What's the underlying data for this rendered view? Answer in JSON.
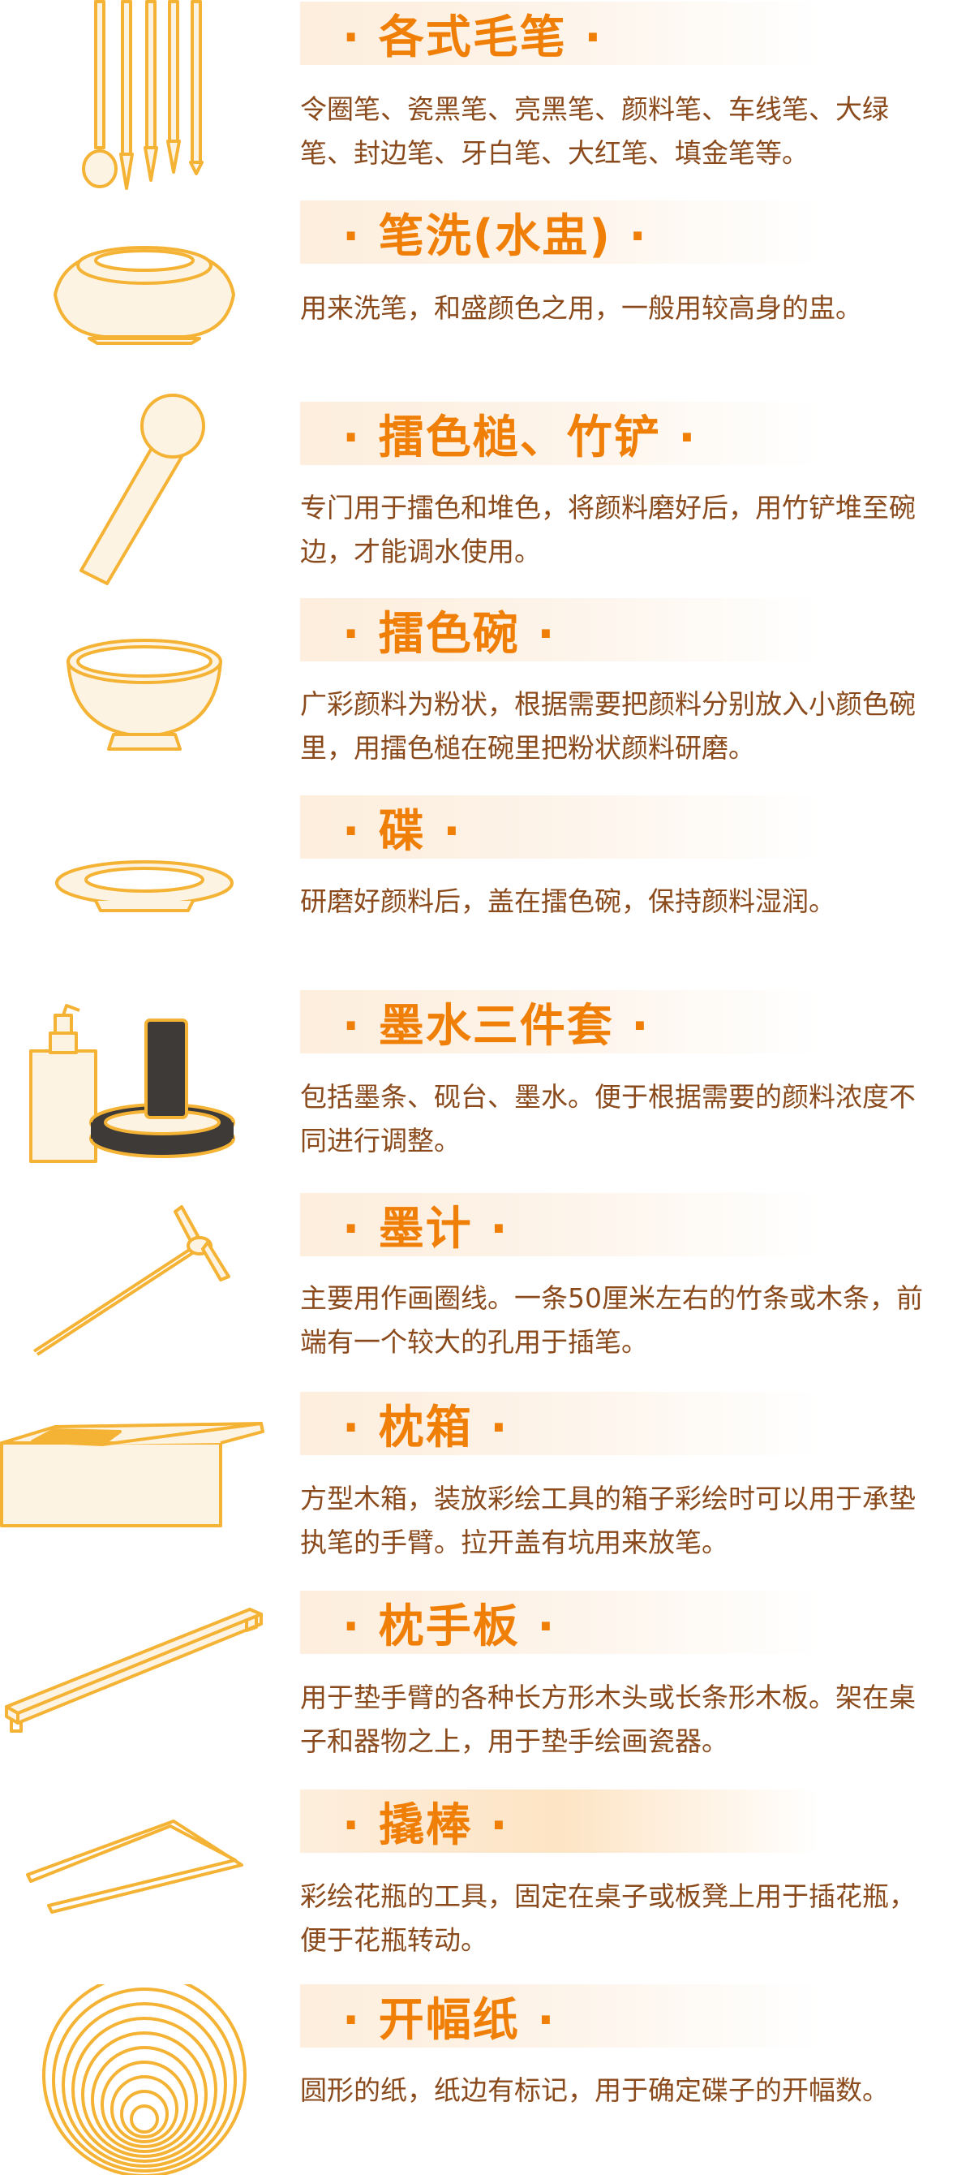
{
  "items": [
    {
      "title": "· 各式毛笔 ·",
      "desc": "令圈笔、瓷黑笔、亮黑笔、颜料笔、车线笔、大绿笔、封边笔、牙白笔、大红笔、填金笔等。",
      "icon": "brush-set-icon"
    },
    {
      "title": "· 笔洗(水盅) ·",
      "desc": "用来洗笔，和盛颜色之用，一般用较高身的盅。",
      "icon": "brush-washer-icon"
    },
    {
      "title": "· 擂色槌、竹铲 ·",
      "desc": "专门用于擂色和堆色，将颜料磨好后，用竹铲堆至碗边，才能调水使用。",
      "icon": "pestle-icon"
    },
    {
      "title": "· 擂色碗 ·",
      "desc": "广彩颜料为粉状，根据需要把颜料分别放入小颜色碗里，用擂色槌在碗里把粉状颜料研磨。",
      "icon": "grinding-bowl-icon"
    },
    {
      "title": "· 碟 ·",
      "desc": "研磨好颜料后，盖在擂色碗，保持颜料湿润。",
      "icon": "dish-icon"
    },
    {
      "title": "· 墨水三件套 ·",
      "desc": "包括墨条、砚台、墨水。便于根据需要的颜料浓度不同进行调整。",
      "icon": "ink-set-icon"
    },
    {
      "title": "· 墨计 ·",
      "desc": "主要用作画圈线。一条50厘米左右的竹条或木条，前端有一个较大的孔用于插笔。",
      "icon": "compass-stick-icon"
    },
    {
      "title": "· 枕箱 ·",
      "desc": "方型木箱，装放彩绘工具的箱子彩绘时可以用于承垫执笔的手臂。拉开盖有坑用来放笔。",
      "icon": "wooden-box-icon"
    },
    {
      "title": "· 枕手板 ·",
      "desc": "用于垫手臂的各种长方形木头或长条形木板。架在桌子和器物之上，用于垫手绘画瓷器。",
      "icon": "arm-rest-board-icon"
    },
    {
      "title": "· 撬棒 ·",
      "desc": "彩绘花瓶的工具，固定在桌子或板凳上用于插花瓶，便于花瓶转动。",
      "icon": "pry-bar-icon"
    },
    {
      "title": "· 开幅纸 ·",
      "desc": "圆形的纸，纸边有标记，用于确定碟子的开幅数。",
      "icon": "paper-circles-icon"
    }
  ],
  "colors": {
    "title": "#f07f08",
    "text": "#8a4a1c",
    "line": "#f5b335",
    "fill": "#fdf3e3"
  }
}
